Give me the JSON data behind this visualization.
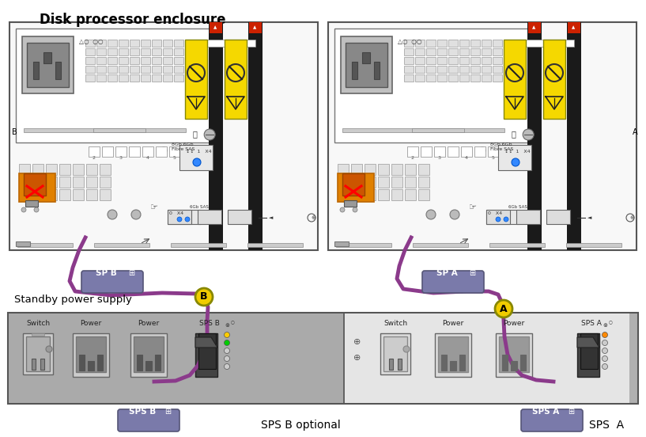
{
  "title": "Disk processor enclosure",
  "title_fontsize": 12,
  "title_fontweight": "bold",
  "bg_color": "#ffffff",
  "cable_color": "#8b3a8b",
  "cable_lw": 3.5,
  "standby_text": "Standby power supply",
  "sps_b_optional": "SPS B optional",
  "sps_a_label": "SPS  A",
  "panel_bg": "#f5f5f5",
  "panel_border": "#555555",
  "sps_bg_left": "#aaaaaa",
  "sps_bg_right": "#e8e8e8",
  "yellow_color": "#f5d800",
  "black_col": "#1a1a1a",
  "red_col": "#cc0000",
  "orange_col": "#e08000",
  "label_box_color": "#7a7aaa",
  "label_text_color": "#ffffff",
  "circle_bg": "#f0cc00",
  "drive_bay_fill": "#e0e0e0",
  "drive_bay_edge": "#999999"
}
